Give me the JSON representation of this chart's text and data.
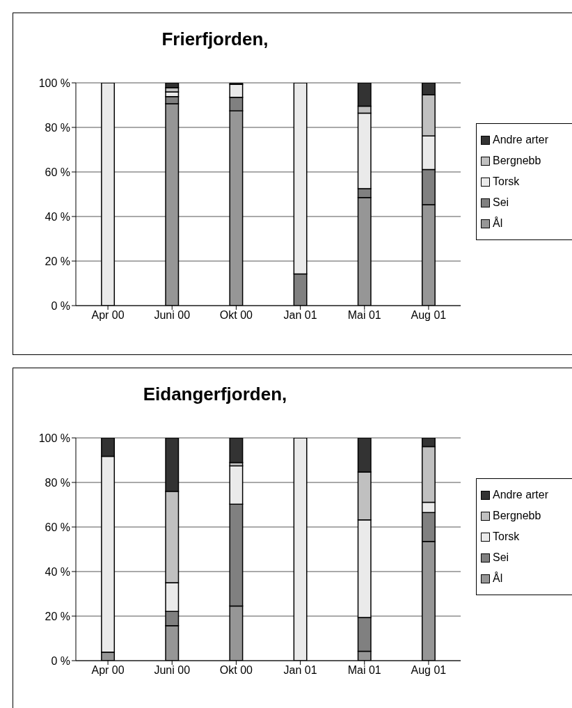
{
  "chart_data": [
    {
      "type": "bar",
      "title": "Frierfjorden,",
      "stacked": true,
      "categories": [
        "Apr 00",
        "Juni 00",
        "Okt 00",
        "Jan 01",
        "Mai 01",
        "Aug 01"
      ],
      "ylim": [
        0,
        100
      ],
      "yticks": [
        {
          "value": 0,
          "label": "0 %"
        },
        {
          "value": 20,
          "label": "20 %"
        },
        {
          "value": 40,
          "label": "40 %"
        },
        {
          "value": 60,
          "label": "60 %"
        },
        {
          "value": 80,
          "label": "80 %"
        },
        {
          "value": 100,
          "label": "100 %"
        }
      ],
      "grid": "y",
      "legend": "right",
      "series": [
        {
          "name": "Ål",
          "color": "#969696",
          "values": [
            0,
            90.6,
            87.4,
            0,
            48.5,
            45.3
          ]
        },
        {
          "name": "Sei",
          "color": "#808080",
          "values": [
            0,
            3.2,
            6.1,
            14.2,
            4.0,
            15.8
          ]
        },
        {
          "name": "Torsk",
          "color": "#eaeaea",
          "values": [
            100,
            2.1,
            5.8,
            85.8,
            33.9,
            15.1
          ]
        },
        {
          "name": "Bergnebb",
          "color": "#c0c0c0",
          "values": [
            0,
            1.9,
            0,
            0,
            3.1,
            18.4
          ]
        },
        {
          "name": "Andre arter",
          "color": "#333333",
          "values": [
            0,
            2.2,
            0.7,
            0,
            10.5,
            5.4
          ]
        }
      ]
    },
    {
      "type": "bar",
      "title": "Eidangerfjorden,",
      "stacked": true,
      "categories": [
        "Apr 00",
        "Juni 00",
        "Okt 00",
        "Jan 01",
        "Mai 01",
        "Aug 01"
      ],
      "ylim": [
        0,
        100
      ],
      "yticks": [
        {
          "value": 0,
          "label": "0 %"
        },
        {
          "value": 20,
          "label": "20 %"
        },
        {
          "value": 40,
          "label": "40 %"
        },
        {
          "value": 60,
          "label": "60 %"
        },
        {
          "value": 80,
          "label": "80 %"
        },
        {
          "value": 100,
          "label": "100 %"
        }
      ],
      "grid": "y",
      "legend": "right",
      "series": [
        {
          "name": "Ål",
          "color": "#969696",
          "values": [
            3.8,
            15.7,
            24.5,
            0,
            4.2,
            53.5
          ]
        },
        {
          "name": "Sei",
          "color": "#808080",
          "values": [
            0,
            6.4,
            45.7,
            0,
            15.2,
            13.0
          ]
        },
        {
          "name": "Torsk",
          "color": "#eaeaea",
          "values": [
            87.9,
            12.9,
            17.2,
            100,
            43.8,
            4.6
          ]
        },
        {
          "name": "Bergnebb",
          "color": "#c0c0c0",
          "values": [
            0,
            41.0,
            1.5,
            0,
            21.5,
            25.0
          ]
        },
        {
          "name": "Andre arter",
          "color": "#333333",
          "values": [
            8.3,
            24.0,
            11.1,
            0,
            15.3,
            3.9
          ]
        }
      ]
    }
  ]
}
